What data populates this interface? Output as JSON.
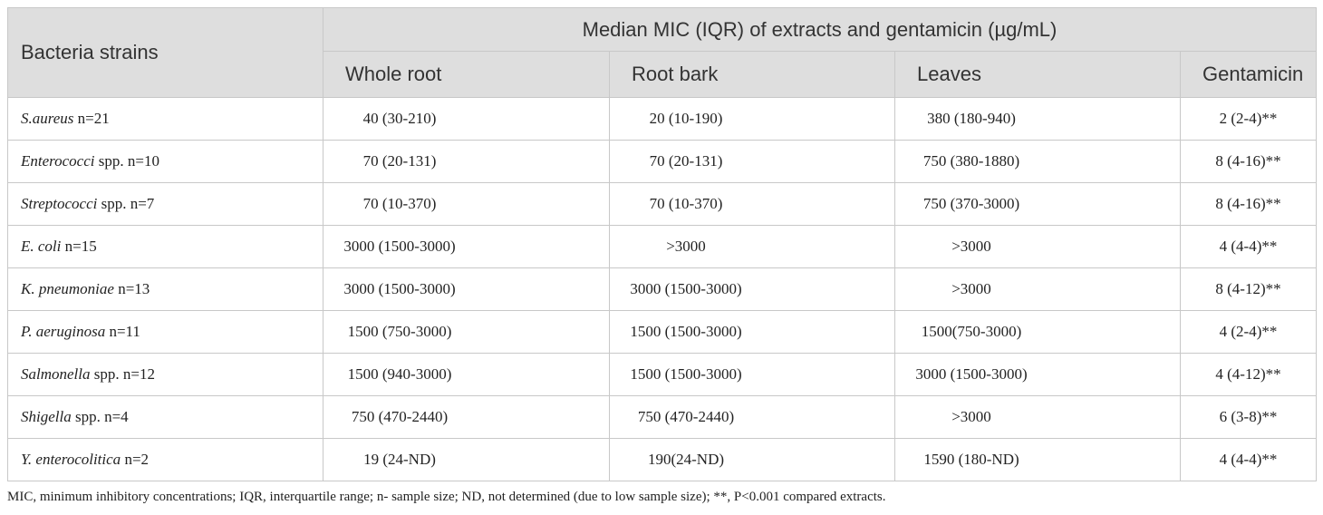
{
  "table": {
    "header": {
      "strain": "Bacteria strains",
      "group": "Median MIC (IQR) of extracts and gentamicin (µg/mL)",
      "columns": [
        "Whole root",
        "Root bark",
        "Leaves",
        "Gentamicin"
      ]
    },
    "rows": [
      {
        "name": "S.aureus",
        "rest": "n=21",
        "cells": [
          "40 (30-210)",
          "20 (10-190)",
          "380 (180-940)",
          "2 (2-4)**"
        ]
      },
      {
        "name": "Enterococci",
        "rest": "spp. n=10",
        "cells": [
          "70 (20-131)",
          "70 (20-131)",
          "750 (380-1880)",
          "8 (4-16)**"
        ]
      },
      {
        "name": "Streptococci",
        "rest": "spp. n=7",
        "cells": [
          "70 (10-370)",
          "70 (10-370)",
          "750 (370-3000)",
          "8 (4-16)**"
        ]
      },
      {
        "name": "E. coli",
        "rest": "n=15",
        "cells": [
          "3000 (1500-3000)",
          ">3000",
          ">3000",
          "4 (4-4)**"
        ]
      },
      {
        "name": "K. pneumoniae",
        "rest": "n=13",
        "cells": [
          "3000 (1500-3000)",
          "3000 (1500-3000)",
          ">3000",
          "8 (4-12)**"
        ]
      },
      {
        "name": "P. aeruginosa",
        "rest": "n=11",
        "cells": [
          "1500 (750-3000)",
          "1500 (1500-3000)",
          "1500(750-3000)",
          "4 (2-4)**"
        ]
      },
      {
        "name": "Salmonella",
        "rest": "spp. n=12",
        "cells": [
          "1500 (940-3000)",
          "1500 (1500-3000)",
          "3000 (1500-3000)",
          "4 (4-12)**"
        ]
      },
      {
        "name": "Shigella",
        "rest": "spp. n=4",
        "cells": [
          "750 (470-2440)",
          "750 (470-2440)",
          ">3000",
          "6 (3-8)**"
        ]
      },
      {
        "name": "Y. enterocolitica",
        "rest": "n=2",
        "cells": [
          "19 (24-ND)",
          "190(24-ND)",
          "1590 (180-ND)",
          "4 (4-4)**"
        ]
      }
    ]
  },
  "footnote": "MIC, minimum inhibitory concentrations; IQR, interquartile range; n- sample size; ND, not determined (due to low sample size); **, P<0.001 compared extracts."
}
